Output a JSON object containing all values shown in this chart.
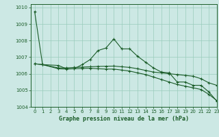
{
  "title": "Graphe pression niveau de la mer (hPa)",
  "background_color": "#cce8e4",
  "grid_color": "#99ccbb",
  "line_color": "#1a5c28",
  "xlim": [
    -0.5,
    23
  ],
  "ylim": [
    1004,
    1010.2
  ],
  "yticks": [
    1004,
    1005,
    1006,
    1007,
    1008,
    1009,
    1010
  ],
  "xticks": [
    0,
    1,
    2,
    3,
    4,
    5,
    6,
    7,
    8,
    9,
    10,
    11,
    12,
    13,
    14,
    15,
    16,
    17,
    18,
    19,
    20,
    21,
    22,
    23
  ],
  "series1_x": [
    0,
    1,
    3,
    4,
    5,
    6,
    7,
    8,
    9,
    10,
    11,
    12,
    13,
    14,
    15,
    16,
    17,
    18,
    19,
    20,
    21,
    22,
    23
  ],
  "series1_y": [
    1009.75,
    1006.55,
    1006.5,
    1006.3,
    1006.3,
    1006.55,
    1006.85,
    1007.4,
    1007.55,
    1008.1,
    1007.5,
    1007.5,
    1007.05,
    1006.7,
    1006.35,
    1006.1,
    1006.05,
    1005.5,
    1005.5,
    1005.3,
    1005.3,
    1004.9,
    1004.35
  ],
  "series2_x": [
    0,
    1,
    3,
    4,
    5,
    6,
    7,
    8,
    9,
    10,
    11,
    12,
    13,
    14,
    15,
    16,
    17,
    18,
    19,
    20,
    21,
    22,
    23
  ],
  "series2_y": [
    1006.6,
    1006.55,
    1006.35,
    1006.35,
    1006.38,
    1006.4,
    1006.42,
    1006.44,
    1006.45,
    1006.46,
    1006.42,
    1006.38,
    1006.3,
    1006.2,
    1006.1,
    1006.05,
    1006.0,
    1005.95,
    1005.9,
    1005.85,
    1005.7,
    1005.45,
    1005.3
  ],
  "series3_x": [
    0,
    1,
    3,
    4,
    5,
    6,
    7,
    8,
    9,
    10,
    11,
    12,
    13,
    14,
    15,
    16,
    17,
    18,
    19,
    20,
    21,
    22,
    23
  ],
  "series3_y": [
    1006.6,
    1006.55,
    1006.3,
    1006.28,
    1006.3,
    1006.32,
    1006.33,
    1006.3,
    1006.28,
    1006.28,
    1006.22,
    1006.16,
    1006.05,
    1005.95,
    1005.8,
    1005.65,
    1005.5,
    1005.35,
    1005.25,
    1005.15,
    1005.05,
    1004.75,
    1004.38
  ],
  "title_fontsize": 6,
  "tick_fontsize": 5
}
